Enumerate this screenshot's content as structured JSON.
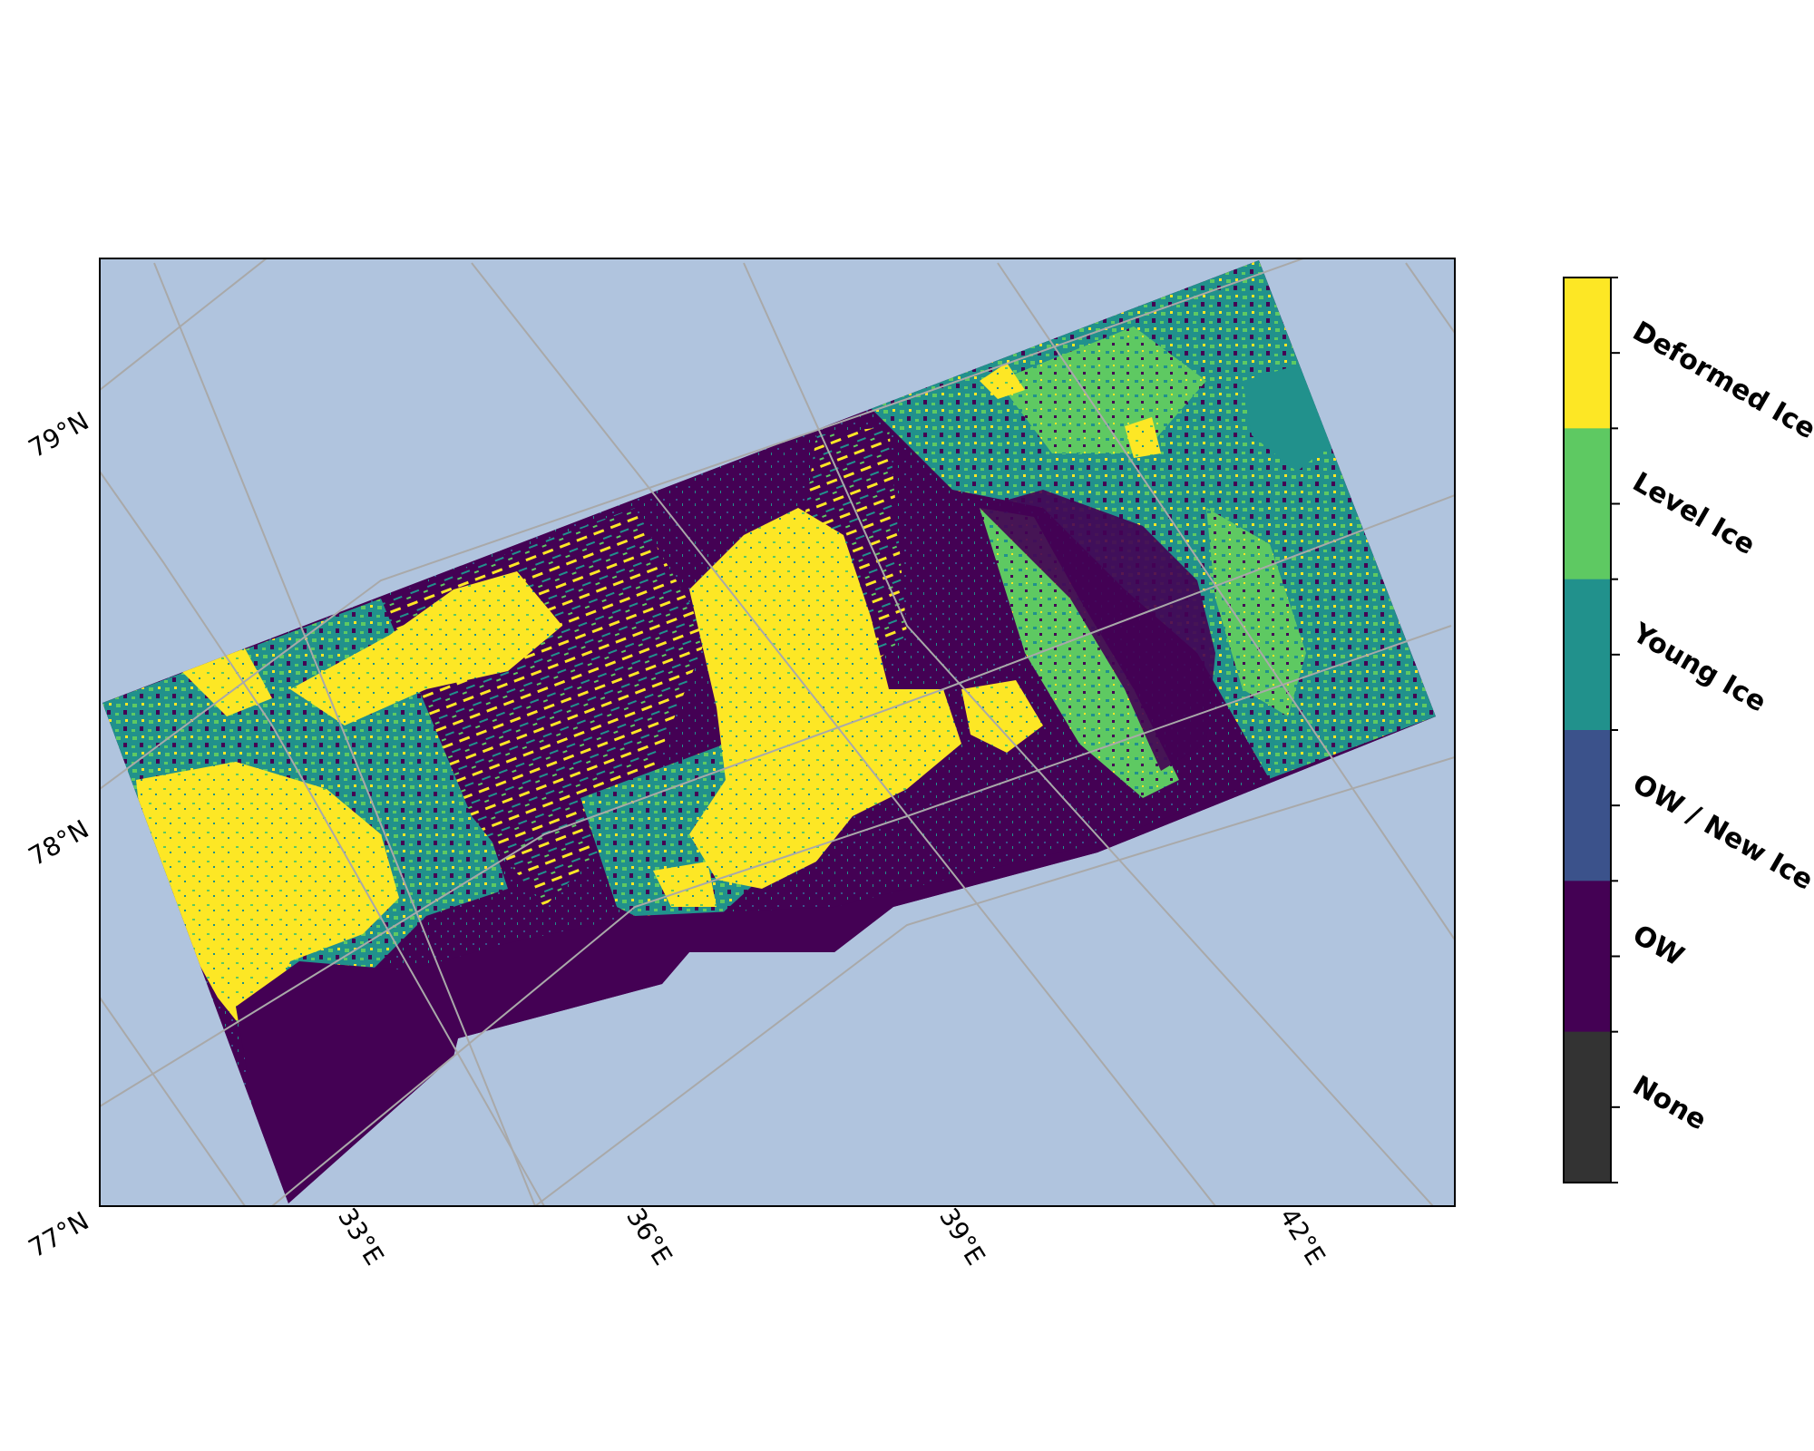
{
  "map": {
    "ocean_color": "#b0c4de",
    "graticule_color": "#a9a9a9",
    "lat_labels": [
      "79°N",
      "78°N",
      "77°N"
    ],
    "lon_labels": [
      "33°E",
      "36°E",
      "39°E",
      "42°E"
    ]
  },
  "legend": {
    "classes": [
      {
        "label": "Deformed Ice",
        "color": "#fde725"
      },
      {
        "label": "Level Ice",
        "color": "#5ec962"
      },
      {
        "label": "Young Ice",
        "color": "#21918c"
      },
      {
        "label": "OW / New Ice",
        "color": "#3b528b"
      },
      {
        "label": "OW",
        "color": "#440154"
      },
      {
        "label": "None",
        "color": "#333333"
      }
    ]
  },
  "chart_data": {
    "type": "heatmap",
    "description": "categorical sea-ice classification map",
    "categories": [
      "Deformed Ice",
      "Level Ice",
      "Young Ice",
      "OW / New Ice",
      "OW",
      "None"
    ],
    "lat_ticks": [
      "77°N",
      "78°N",
      "79°N"
    ],
    "lon_ticks": [
      "33°E",
      "36°E",
      "39°E",
      "42°E"
    ],
    "grid": true
  }
}
